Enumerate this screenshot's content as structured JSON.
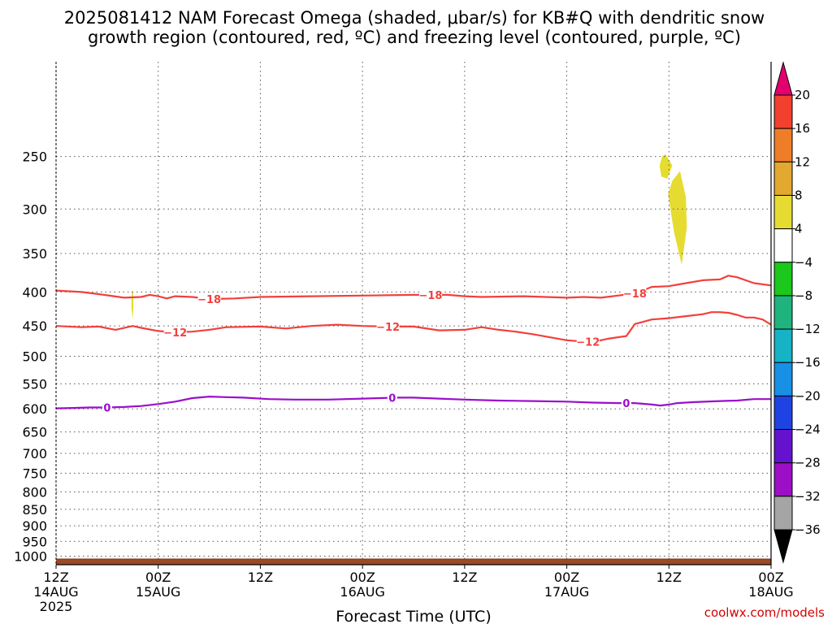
{
  "chart_data": {
    "type": "area",
    "title_line1": "2025081412 NAM Forecast Omega (shaded, μbar/s) for KB#Q with dendritic snow",
    "title_line2": "growth region (contoured, red, ºC) and freezing level (contoured, purple, ºC)",
    "xlabel": "Forecast Time (UTC)",
    "credit": "coolwx.com/models",
    "xlim_hours": [
      0,
      84
    ],
    "ylim_mb": [
      1030,
      180
    ],
    "y_scale": "log-pressure",
    "grid": true,
    "x_ticks": [
      {
        "h": 0,
        "l1": "12Z",
        "l2": "14AUG",
        "l3": "2025"
      },
      {
        "h": 12,
        "l1": "00Z",
        "l2": "15AUG",
        "l3": ""
      },
      {
        "h": 24,
        "l1": "12Z",
        "l2": "",
        "l3": ""
      },
      {
        "h": 36,
        "l1": "00Z",
        "l2": "16AUG",
        "l3": ""
      },
      {
        "h": 48,
        "l1": "12Z",
        "l2": "",
        "l3": ""
      },
      {
        "h": 60,
        "l1": "00Z",
        "l2": "17AUG",
        "l3": ""
      },
      {
        "h": 72,
        "l1": "12Z",
        "l2": "",
        "l3": ""
      },
      {
        "h": 84,
        "l1": "00Z",
        "l2": "18AUG",
        "l3": ""
      }
    ],
    "y_ticks": [
      250,
      300,
      350,
      400,
      450,
      500,
      550,
      600,
      650,
      700,
      750,
      800,
      850,
      900,
      950,
      1000
    ],
    "surface_mb": 1010,
    "colorbar": {
      "labels": [
        "20",
        "16",
        "12",
        "8",
        "4",
        "−4",
        "−8",
        "−12",
        "−16",
        "−20",
        "−24",
        "−28",
        "−32",
        "−36"
      ],
      "colors": [
        "#e3006e",
        "#f2402e",
        "#ef7d27",
        "#e3a82f",
        "#e6dc31",
        "#ffffff",
        "#1bc81b",
        "#1fb47d",
        "#16b2c6",
        "#1790e6",
        "#1f43e3",
        "#6512cf",
        "#9c0fc6",
        "#a5a5a5",
        "#000000"
      ]
    },
    "shaded": [
      {
        "name": "omega 4 to 8",
        "color": "#e6dc31",
        "areas": [
          [
            [
              71.2,
              250
            ],
            [
              71.6,
              248
            ],
            [
              72.4,
              258
            ],
            [
              71.8,
              270
            ],
            [
              71.1,
              268
            ],
            [
              70.9,
              258
            ]
          ],
          [
            [
              73.3,
              263
            ],
            [
              74.0,
              288
            ],
            [
              74.1,
              320
            ],
            [
              73.5,
              364
            ],
            [
              72.6,
              325
            ],
            [
              71.9,
              285
            ],
            [
              72.4,
              272
            ]
          ],
          [
            [
              8.9,
              398
            ],
            [
              9.05,
              400
            ],
            [
              9.1,
              420
            ],
            [
              9.0,
              440
            ],
            [
              8.85,
              420
            ]
          ]
        ]
      }
    ],
    "contours": [
      {
        "name": "−18",
        "label": "−18",
        "color": "#f2403c",
        "label_hours": [
          18,
          44,
          68
        ],
        "points": [
          [
            0,
            398
          ],
          [
            3,
            400
          ],
          [
            5,
            403
          ],
          [
            8,
            408
          ],
          [
            10,
            407
          ],
          [
            11,
            404
          ],
          [
            12,
            406
          ],
          [
            13,
            409
          ],
          [
            14,
            406
          ],
          [
            16,
            407
          ],
          [
            18,
            410
          ],
          [
            21,
            409
          ],
          [
            24,
            407
          ],
          [
            30,
            406
          ],
          [
            36,
            405
          ],
          [
            42,
            404
          ],
          [
            46,
            404
          ],
          [
            48,
            406
          ],
          [
            50,
            407
          ],
          [
            55,
            406
          ],
          [
            60,
            408
          ],
          [
            62,
            407
          ],
          [
            64,
            408
          ],
          [
            66,
            405
          ],
          [
            68,
            402
          ],
          [
            70,
            393
          ],
          [
            72,
            392
          ],
          [
            74,
            388
          ],
          [
            76,
            384
          ],
          [
            78,
            383
          ],
          [
            79,
            378
          ],
          [
            80,
            380
          ],
          [
            82,
            388
          ],
          [
            84,
            391
          ]
        ]
      },
      {
        "name": "−12",
        "label": "−12",
        "color": "#f2403c",
        "label_hours": [
          14,
          39,
          62.5
        ],
        "points": [
          [
            0,
            450
          ],
          [
            3,
            452
          ],
          [
            5,
            451
          ],
          [
            7,
            456
          ],
          [
            9,
            450
          ],
          [
            10,
            453
          ],
          [
            12,
            458
          ],
          [
            14,
            460
          ],
          [
            16,
            459
          ],
          [
            18,
            456
          ],
          [
            20,
            452
          ],
          [
            24,
            451
          ],
          [
            27,
            454
          ],
          [
            30,
            450
          ],
          [
            33,
            448
          ],
          [
            36,
            450
          ],
          [
            39,
            451
          ],
          [
            42,
            451
          ],
          [
            45,
            457
          ],
          [
            48,
            456
          ],
          [
            50,
            452
          ],
          [
            52,
            456
          ],
          [
            54,
            459
          ],
          [
            56,
            463
          ],
          [
            58,
            468
          ],
          [
            60,
            473
          ],
          [
            63,
            476
          ],
          [
            65,
            470
          ],
          [
            67,
            466
          ],
          [
            68,
            447
          ],
          [
            70,
            440
          ],
          [
            72,
            438
          ],
          [
            74,
            435
          ],
          [
            76,
            432
          ],
          [
            77,
            429
          ],
          [
            78,
            429
          ],
          [
            79,
            430
          ],
          [
            80,
            433
          ],
          [
            81,
            437
          ],
          [
            82,
            437
          ],
          [
            83,
            440
          ],
          [
            84,
            448
          ]
        ]
      },
      {
        "name": "0",
        "label": "0",
        "color": "#9b0ecb",
        "label_hours": [
          6,
          39.5,
          67
        ],
        "points": [
          [
            0,
            599
          ],
          [
            2,
            598
          ],
          [
            4,
            597
          ],
          [
            6,
            597
          ],
          [
            8,
            596
          ],
          [
            10,
            594
          ],
          [
            12,
            590
          ],
          [
            14,
            585
          ],
          [
            16,
            578
          ],
          [
            18,
            575
          ],
          [
            20,
            576
          ],
          [
            22,
            577
          ],
          [
            25,
            580
          ],
          [
            28,
            581
          ],
          [
            32,
            581
          ],
          [
            36,
            579
          ],
          [
            40,
            577
          ],
          [
            42,
            577
          ],
          [
            45,
            579
          ],
          [
            48,
            581
          ],
          [
            52,
            583
          ],
          [
            56,
            584
          ],
          [
            60,
            585
          ],
          [
            63,
            587
          ],
          [
            66,
            588
          ],
          [
            68,
            588
          ],
          [
            70,
            591
          ],
          [
            71,
            593
          ],
          [
            72,
            591
          ],
          [
            73,
            588
          ],
          [
            75,
            586
          ],
          [
            78,
            584
          ],
          [
            80,
            583
          ],
          [
            82,
            580
          ],
          [
            84,
            580
          ]
        ]
      }
    ]
  }
}
